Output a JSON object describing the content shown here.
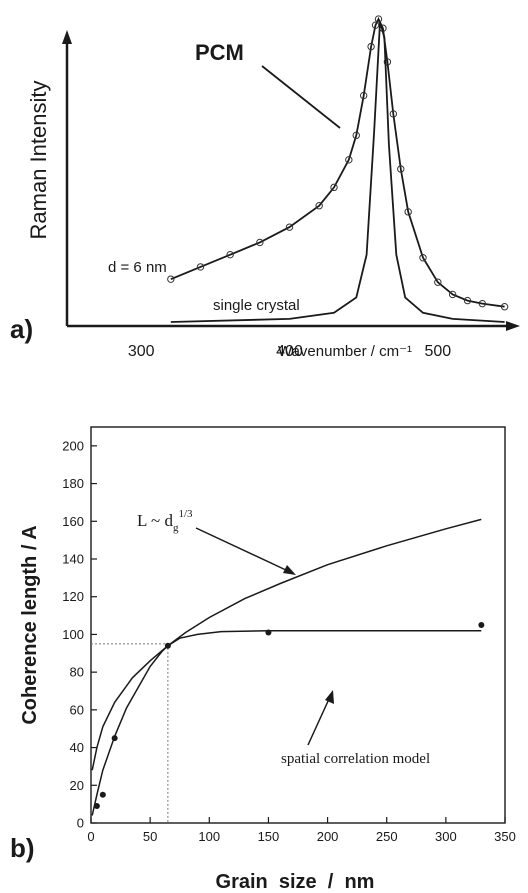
{
  "chart_data": [
    {
      "panel_label": "a)",
      "type": "line",
      "xlabel": "Wavenumber / cm⁻¹",
      "ylabel": "Raman Intensity",
      "xlim": [
        250,
        550
      ],
      "xticks": [
        300,
        400,
        500
      ],
      "grid": false,
      "annotations": {
        "pcm": "PCM",
        "size": "d = 6 nm",
        "crystal": "single crystal"
      },
      "series": [
        {
          "name": "PCM",
          "style": "line-with-circle-markers",
          "x": [
            320,
            340,
            360,
            380,
            400,
            420,
            430,
            440,
            445,
            450,
            455,
            458,
            460,
            463,
            466,
            470,
            475,
            480,
            490,
            500,
            510,
            520,
            530,
            545
          ],
          "y": [
            0.14,
            0.18,
            0.22,
            0.26,
            0.31,
            0.38,
            0.44,
            0.53,
            0.61,
            0.74,
            0.9,
            0.97,
            0.99,
            0.96,
            0.85,
            0.68,
            0.5,
            0.36,
            0.21,
            0.13,
            0.09,
            0.07,
            0.06,
            0.05
          ]
        },
        {
          "name": "single crystal",
          "style": "line",
          "x": [
            320,
            400,
            430,
            445,
            452,
            457,
            461,
            464,
            467,
            472,
            478,
            490,
            510,
            545
          ],
          "y": [
            0.0,
            0.01,
            0.03,
            0.08,
            0.22,
            0.62,
            0.98,
            0.93,
            0.58,
            0.22,
            0.08,
            0.03,
            0.01,
            0.0
          ]
        }
      ]
    },
    {
      "panel_label": "b)",
      "type": "line",
      "xlabel": "Grain  size  /  nm",
      "ylabel": "Coherence length  /  A",
      "xlim": [
        0,
        350
      ],
      "ylim": [
        0,
        210
      ],
      "xticks": [
        0,
        50,
        100,
        150,
        200,
        250,
        300,
        350
      ],
      "yticks": [
        0,
        20,
        40,
        60,
        80,
        100,
        120,
        140,
        160,
        180,
        200
      ],
      "grid": false,
      "annotations": {
        "power_law": "L ~ d",
        "power_law_sub": "g",
        "power_law_sup": "1/3",
        "model": "spatial correlation model"
      },
      "series": [
        {
          "name": "L ~ dg^1/3",
          "style": "line",
          "x": [
            1,
            5,
            10,
            20,
            35,
            50,
            65,
            80,
            100,
            130,
            160,
            200,
            250,
            300,
            330
          ],
          "y": [
            28,
            40,
            51,
            64,
            77,
            86,
            94,
            101,
            109,
            119,
            127,
            137,
            147,
            156,
            161
          ]
        },
        {
          "name": "spatial correlation model",
          "style": "line",
          "x": [
            1,
            5,
            10,
            20,
            30,
            40,
            50,
            60,
            65,
            75,
            90,
            110,
            150,
            200,
            330
          ],
          "y": [
            4,
            15,
            28,
            46,
            61,
            72,
            83,
            91,
            94,
            98,
            100,
            101.5,
            102,
            102,
            102
          ]
        },
        {
          "name": "data",
          "style": "markers",
          "x": [
            5,
            10,
            20,
            65,
            150,
            330
          ],
          "y": [
            9,
            15,
            45,
            94,
            101,
            105
          ]
        }
      ],
      "guides": {
        "x": 65,
        "y": 95
      }
    }
  ]
}
